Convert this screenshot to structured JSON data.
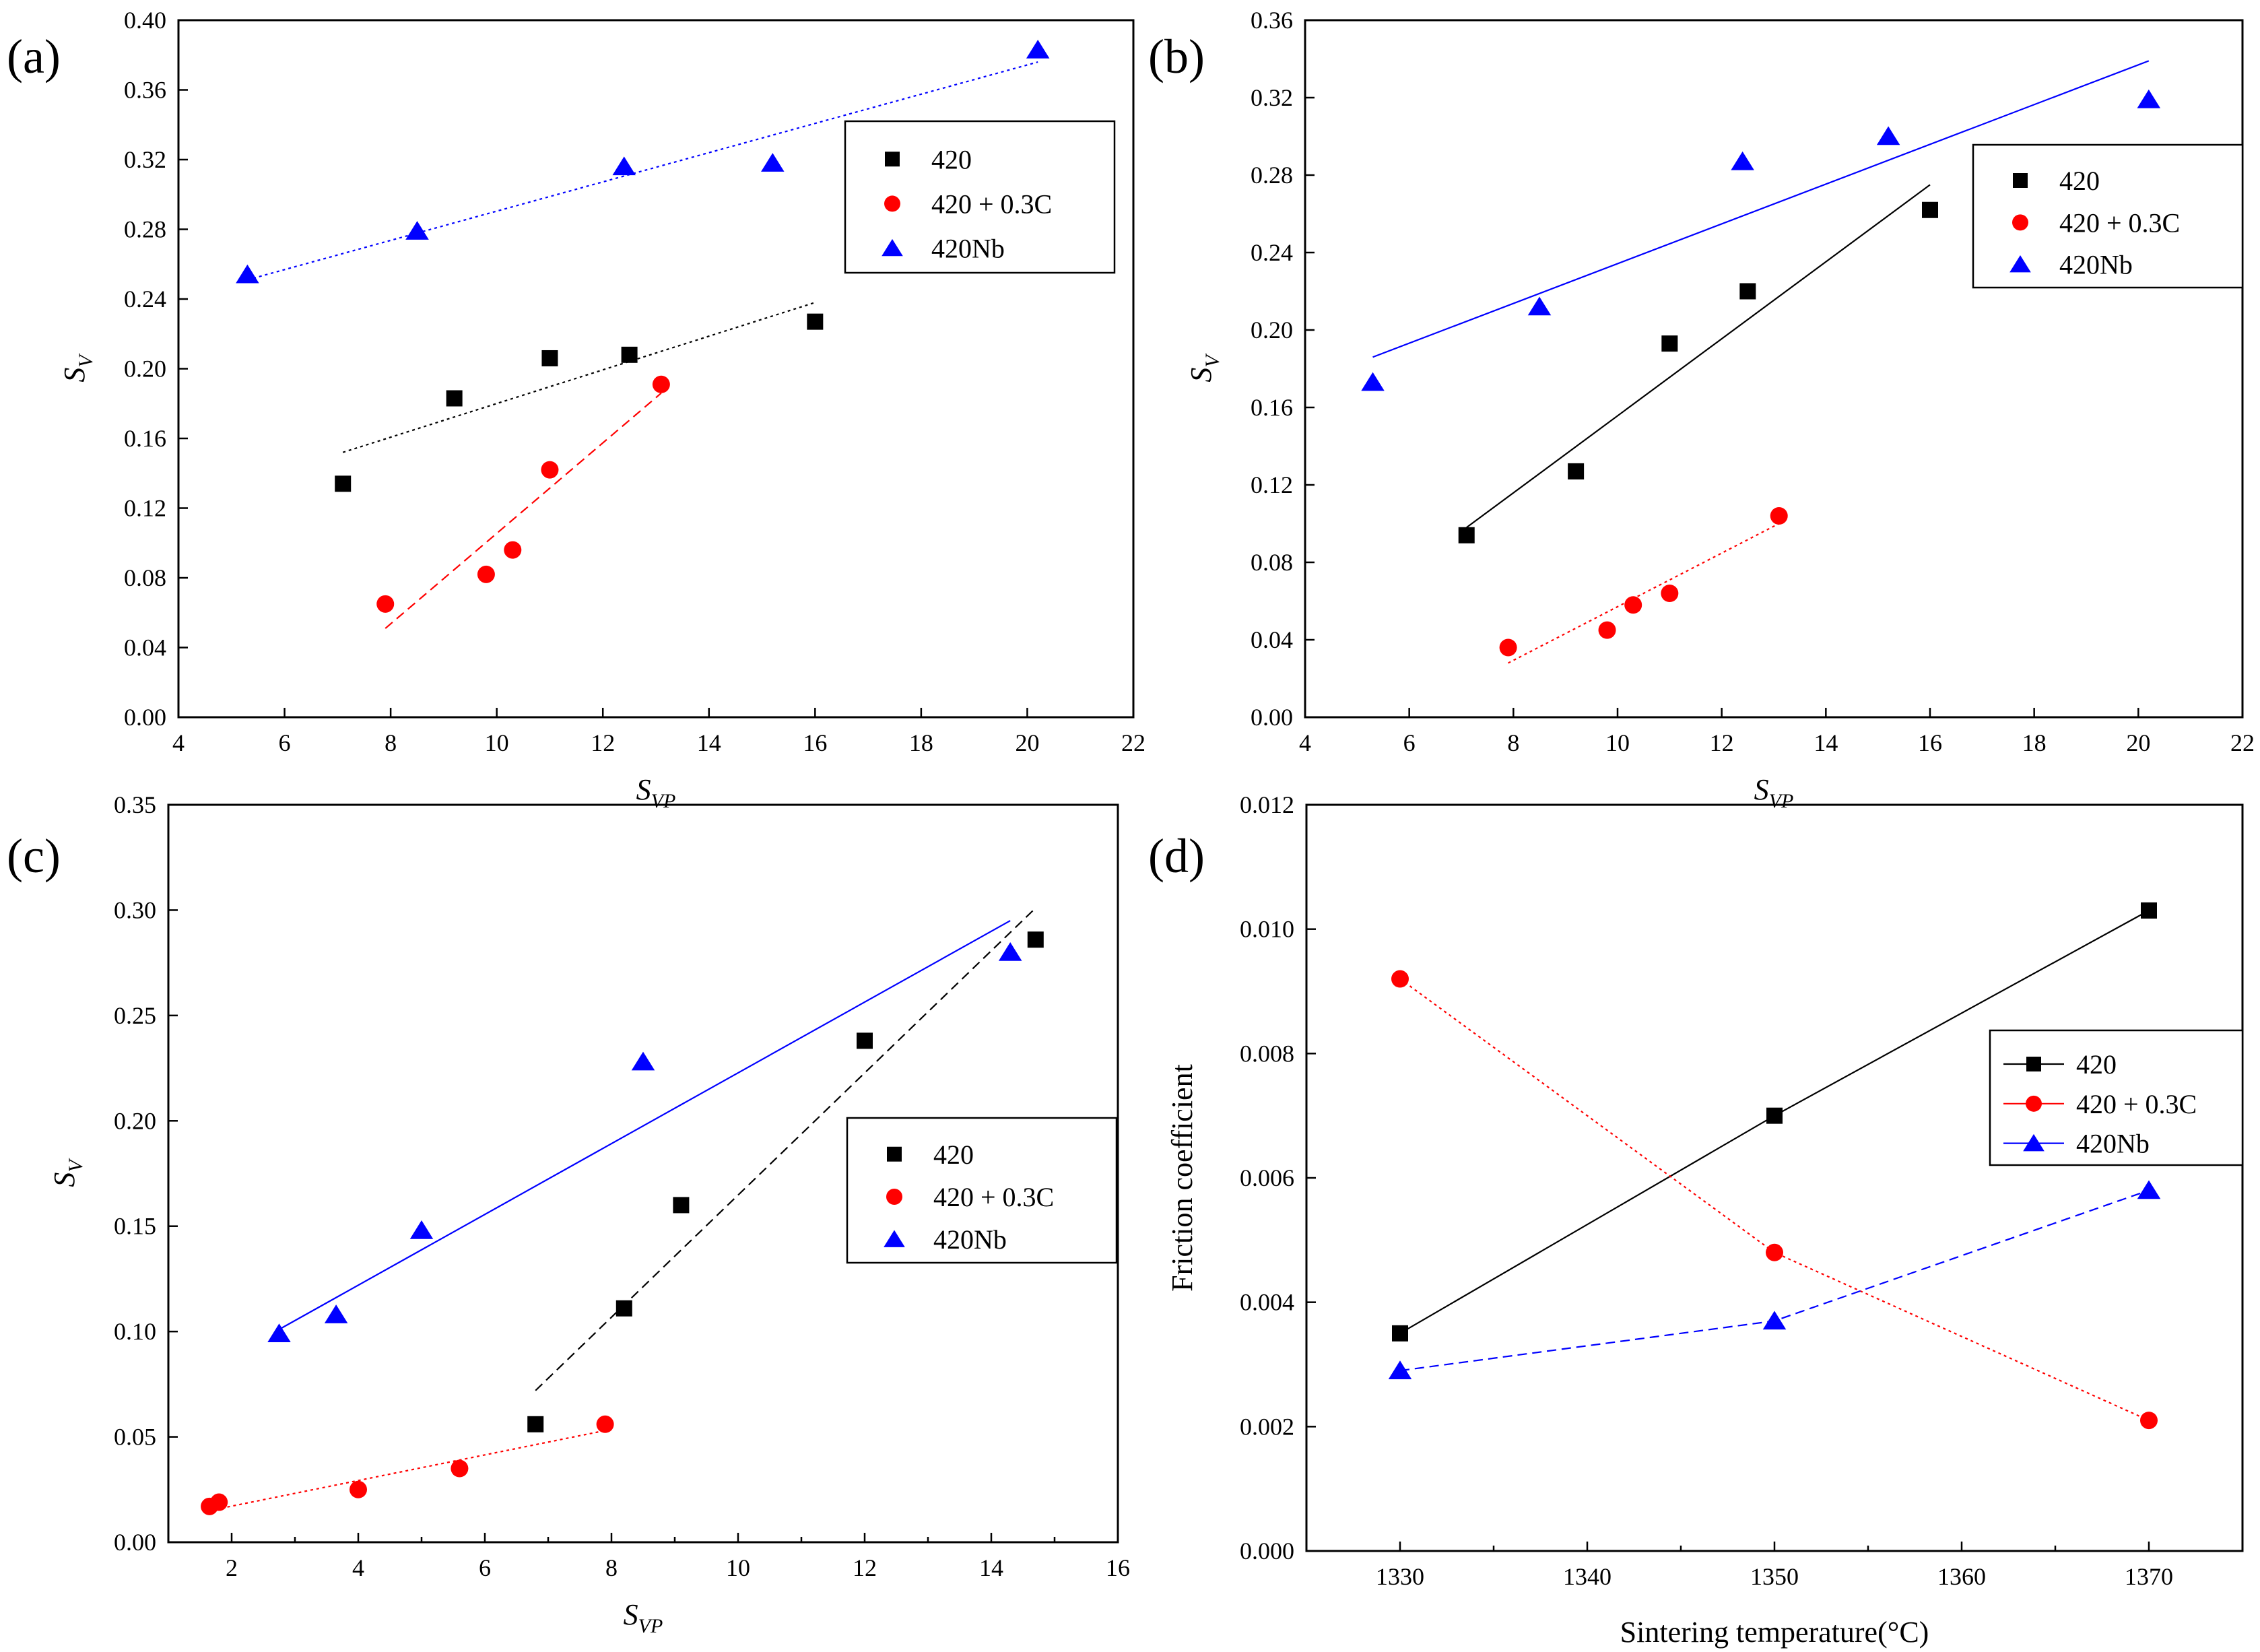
{
  "colors": {
    "420": "#000000",
    "420 + 0.3C": "#ff0000",
    "420Nb": "#0000ff",
    "axis": "#000000"
  },
  "chart_data": [
    {
      "panel": "(a)",
      "type": "scatter",
      "xlabel": "S",
      "xlabel_sub": "VP",
      "ylabel": "S",
      "ylabel_sub": "V",
      "xlim": [
        4,
        22
      ],
      "ylim": [
        0,
        0.4
      ],
      "xticks": [
        "4",
        "6",
        "8",
        "10",
        "12",
        "14",
        "16",
        "18",
        "20",
        "22"
      ],
      "yticks": [
        "0.00",
        "0.04",
        "0.08",
        "0.12",
        "0.16",
        "0.20",
        "0.24",
        "0.28",
        "0.32",
        "0.36",
        "0.40"
      ],
      "legend_position": "top-right",
      "series": [
        {
          "name": "420",
          "marker": "square",
          "x": [
            7.1,
            9.2,
            11.0,
            12.5,
            16.0
          ],
          "y": [
            0.134,
            0.183,
            0.206,
            0.208,
            0.227
          ],
          "fit": [
            [
              7.1,
              0.152
            ],
            [
              16.0,
              0.238
            ]
          ],
          "fit_style": "dotted"
        },
        {
          "name": "420 + 0.3C",
          "marker": "circle",
          "x": [
            7.9,
            9.8,
            10.3,
            11.0,
            13.1
          ],
          "y": [
            0.065,
            0.082,
            0.096,
            0.142,
            0.191
          ],
          "fit": [
            [
              7.9,
              0.051
            ],
            [
              13.1,
              0.186
            ]
          ],
          "fit_style": "dashed"
        },
        {
          "name": "420Nb",
          "marker": "triangle",
          "x": [
            5.3,
            8.5,
            12.4,
            15.2,
            20.2
          ],
          "y": [
            0.254,
            0.279,
            0.316,
            0.318,
            0.383
          ],
          "fit": [
            [
              5.3,
              0.251
            ],
            [
              20.2,
              0.376
            ]
          ],
          "fit_style": "dotted"
        }
      ]
    },
    {
      "panel": "(b)",
      "type": "scatter",
      "xlabel": "S",
      "xlabel_sub": "VP",
      "ylabel": "S",
      "ylabel_sub": "V",
      "xlim": [
        4,
        22
      ],
      "ylim": [
        0,
        0.36
      ],
      "xticks": [
        "4",
        "6",
        "8",
        "10",
        "12",
        "14",
        "16",
        "18",
        "20",
        "22"
      ],
      "yticks": [
        "0.00",
        "0.04",
        "0.08",
        "0.12",
        "0.16",
        "0.20",
        "0.24",
        "0.28",
        "0.32",
        "0.36"
      ],
      "legend_position": "top-right",
      "series": [
        {
          "name": "420",
          "marker": "square",
          "x": [
            7.1,
            9.2,
            11.0,
            12.5,
            16.0
          ],
          "y": [
            0.094,
            0.127,
            0.193,
            0.22,
            0.262
          ],
          "fit": [
            [
              7.1,
              0.098
            ],
            [
              16.0,
              0.275
            ]
          ],
          "fit_style": "solid"
        },
        {
          "name": "420 + 0.3C",
          "marker": "circle",
          "x": [
            7.9,
            9.8,
            10.3,
            11.0,
            13.1
          ],
          "y": [
            0.036,
            0.045,
            0.058,
            0.064,
            0.104
          ],
          "fit": [
            [
              7.9,
              0.028
            ],
            [
              13.1,
              0.1
            ]
          ],
          "fit_style": "dotted"
        },
        {
          "name": "420Nb",
          "marker": "triangle",
          "x": [
            5.3,
            8.5,
            12.4,
            15.2,
            20.2
          ],
          "y": [
            0.173,
            0.212,
            0.287,
            0.3,
            0.319
          ],
          "fit": [
            [
              5.3,
              0.186
            ],
            [
              20.2,
              0.339
            ]
          ],
          "fit_style": "solid"
        }
      ]
    },
    {
      "panel": "(c)",
      "type": "scatter",
      "xlabel": "S",
      "xlabel_sub": "VP",
      "ylabel": "S",
      "ylabel_sub": "V",
      "xlim": [
        1,
        16
      ],
      "ylim": [
        0,
        0.35
      ],
      "xticks": [
        "",
        "2",
        "",
        "4",
        "",
        "6",
        "",
        "8",
        "",
        "10",
        "",
        "12",
        "",
        "14",
        "",
        "16"
      ],
      "yticks": [
        "0.00",
        "0.05",
        "0.10",
        "0.15",
        "0.20",
        "0.25",
        "0.30",
        "0.35"
      ],
      "legend_position": "center-right",
      "series": [
        {
          "name": "420",
          "marker": "square",
          "x": [
            6.8,
            8.2,
            9.1,
            12.0,
            14.7
          ],
          "y": [
            0.056,
            0.111,
            0.16,
            0.238,
            0.286
          ],
          "fit": [
            [
              6.8,
              0.072
            ],
            [
              14.7,
              0.301
            ]
          ],
          "fit_style": "dashed"
        },
        {
          "name": "420 + 0.3C",
          "marker": "circle",
          "x": [
            1.65,
            1.8,
            4.0,
            5.6,
            7.9
          ],
          "y": [
            0.017,
            0.019,
            0.025,
            0.035,
            0.056
          ],
          "fit": [
            [
              1.65,
              0.015
            ],
            [
              7.9,
              0.053
            ]
          ],
          "fit_style": "dotted"
        },
        {
          "name": "420Nb",
          "marker": "triangle",
          "x": [
            2.75,
            3.65,
            5.0,
            8.5,
            14.3
          ],
          "y": [
            0.099,
            0.108,
            0.148,
            0.228,
            0.28
          ],
          "fit": [
            [
              2.75,
              0.101
            ],
            [
              14.3,
              0.295
            ]
          ],
          "fit_style": "solid"
        }
      ]
    },
    {
      "panel": "(d)",
      "type": "line",
      "xlabel": "Sintering temperature(°C)",
      "ylabel": "Friction coefficient",
      "xlim": [
        1325,
        1375
      ],
      "ylim": [
        0,
        0.012
      ],
      "xticks": [
        "",
        "1330",
        "",
        "1340",
        "",
        "1350",
        "",
        "1360",
        "",
        "1370",
        ""
      ],
      "yticks": [
        "0.000",
        "0.002",
        "0.004",
        "0.006",
        "0.008",
        "0.010",
        "0.012"
      ],
      "legend_position": "center-right",
      "series": [
        {
          "name": "420",
          "marker": "square",
          "x": [
            1330,
            1350,
            1370
          ],
          "y": [
            0.0035,
            0.007,
            0.0103
          ],
          "line_style": "solid"
        },
        {
          "name": "420 + 0.3C",
          "marker": "circle",
          "x": [
            1330,
            1350,
            1370
          ],
          "y": [
            0.0092,
            0.0048,
            0.0021
          ],
          "line_style": "dotted"
        },
        {
          "name": "420Nb",
          "marker": "triangle",
          "x": [
            1330,
            1350,
            1370
          ],
          "y": [
            0.0029,
            0.0037,
            0.0058
          ],
          "line_style": "dashed"
        }
      ]
    }
  ]
}
